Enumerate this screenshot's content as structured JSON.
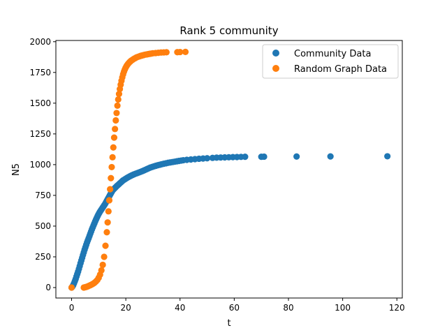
{
  "chart_data": {
    "type": "scatter",
    "title": "Rank 5 community",
    "xlabel": "t",
    "ylabel": "N5",
    "xlim": [
      -5.8,
      122
    ],
    "ylim": [
      -85,
      2010
    ],
    "xticks": [
      0,
      20,
      40,
      60,
      80,
      100,
      120
    ],
    "yticks": [
      0,
      250,
      500,
      750,
      1000,
      1250,
      1500,
      1750,
      2000
    ],
    "grid": false,
    "legend_position": "top-right",
    "series": [
      {
        "name": "Community Data",
        "color": "#1f77b4",
        "x": [
          0,
          0.3,
          0.6,
          0.9,
          1.2,
          1.5,
          1.8,
          2.1,
          2.4,
          2.7,
          3.0,
          3.3,
          3.6,
          3.9,
          4.2,
          4.5,
          4.8,
          5.1,
          5.4,
          5.7,
          6.0,
          6.3,
          6.6,
          6.9,
          7.2,
          7.5,
          7.8,
          8.1,
          8.4,
          8.7,
          9.0,
          9.3,
          9.6,
          9.9,
          10.2,
          10.5,
          10.8,
          11.1,
          11.4,
          11.7,
          12.0,
          12.3,
          12.6,
          12.9,
          13.2,
          13.5,
          13.8,
          14.1,
          14.4,
          14.7,
          15.0,
          15.4,
          15.8,
          16.2,
          16.6,
          17.0,
          17.4,
          17.8,
          18.2,
          18.6,
          19.0,
          19.5,
          20.0,
          20.5,
          21.0,
          21.5,
          22.0,
          22.5,
          23.0,
          23.6,
          24.2,
          24.8,
          25.4,
          26.0,
          26.6,
          27.2,
          27.8,
          28.4,
          29.0,
          29.7,
          30.4,
          31.1,
          31.8,
          32.5,
          33.2,
          34.0,
          34.8,
          35.6,
          36.4,
          37.2,
          38.0,
          38.8,
          39.6,
          40.4,
          41.2,
          42.5,
          44.0,
          45.5,
          47.0,
          48.5,
          50.0,
          52.0,
          53.5,
          55.0,
          56.5,
          58.0,
          59.5,
          61.0,
          62.5,
          64.0,
          70.0,
          71.0,
          83.0,
          95.5,
          116.5
        ],
        "y": [
          0,
          8,
          20,
          35,
          52,
          70,
          90,
          110,
          130,
          152,
          175,
          198,
          220,
          242,
          265,
          287,
          308,
          328,
          348,
          367,
          385,
          402,
          420,
          438,
          456,
          474,
          490,
          506,
          522,
          538,
          554,
          568,
          582,
          595,
          607,
          618,
          628,
          638,
          648,
          658,
          668,
          678,
          690,
          702,
          714,
          726,
          738,
          750,
          762,
          774,
          786,
          797,
          806,
          815,
          824,
          832,
          840,
          848,
          856,
          864,
          872,
          879,
          886,
          893,
          899,
          905,
          911,
          916,
          921,
          926,
          931,
          936,
          941,
          946,
          952,
          958,
          964,
          970,
          976,
          981,
          986,
          991,
          995,
          999,
          1003,
          1007,
          1011,
          1015,
          1018,
          1021,
          1024,
          1027,
          1030,
          1033,
          1036,
          1039,
          1042,
          1045,
          1048,
          1050,
          1052,
          1055,
          1057,
          1058,
          1059,
          1060,
          1061,
          1062,
          1063,
          1064,
          1064,
          1065,
          1066,
          1067,
          1068
        ]
      },
      {
        "name": "Random Graph Data",
        "color": "#ff7f0e",
        "x": [
          0,
          4.5,
          5.0,
          5.5,
          6.0,
          6.5,
          7.0,
          7.5,
          8.0,
          8.5,
          9.0,
          9.5,
          10.0,
          10.5,
          11.0,
          11.5,
          12.0,
          12.5,
          13.0,
          13.3,
          13.6,
          13.9,
          14.2,
          14.5,
          14.8,
          15.1,
          15.4,
          15.7,
          16.0,
          16.3,
          16.6,
          16.9,
          17.2,
          17.5,
          17.8,
          18.1,
          18.4,
          18.7,
          19.0,
          19.3,
          19.6,
          19.9,
          20.2,
          20.5,
          20.8,
          21.1,
          21.4,
          21.7,
          22.0,
          22.4,
          22.8,
          23.2,
          23.6,
          24.0,
          24.5,
          25.0,
          25.5,
          26.0,
          26.5,
          27.0,
          27.5,
          28.0,
          28.5,
          29.0,
          29.5,
          30.0,
          31.0,
          32.0,
          33.0,
          34.0,
          35.0,
          39.0,
          40.0,
          42.0
        ],
        "y": [
          0,
          0,
          3,
          6,
          10,
          15,
          20,
          26,
          32,
          40,
          50,
          62,
          80,
          105,
          140,
          185,
          250,
          340,
          450,
          530,
          620,
          710,
          800,
          890,
          980,
          1060,
          1140,
          1220,
          1290,
          1360,
          1420,
          1480,
          1530,
          1575,
          1615,
          1650,
          1682,
          1710,
          1735,
          1755,
          1772,
          1787,
          1800,
          1810,
          1819,
          1827,
          1834,
          1840,
          1846,
          1852,
          1858,
          1863,
          1868,
          1873,
          1877,
          1881,
          1885,
          1888,
          1891,
          1894,
          1896,
          1898,
          1900,
          1902,
          1904,
          1906,
          1908,
          1910,
          1912,
          1913,
          1914,
          1915,
          1916,
          1917
        ]
      }
    ]
  }
}
